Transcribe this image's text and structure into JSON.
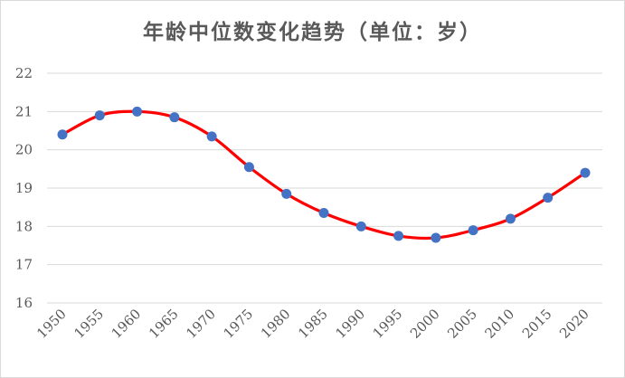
{
  "chart_data": {
    "type": "line",
    "title": "年龄中位数变化趋势（单位：岁）",
    "xlabel": "",
    "ylabel": "",
    "x": [
      1950,
      1955,
      1960,
      1965,
      1970,
      1975,
      1980,
      1985,
      1990,
      1995,
      2000,
      2005,
      2010,
      2015,
      2020
    ],
    "x_tick_labels": [
      "1950",
      "1955",
      "1960",
      "1965",
      "1970",
      "1975",
      "1980",
      "1985",
      "1990",
      "1995",
      "2000",
      "2005",
      "2010",
      "2015",
      "2020"
    ],
    "y_tick_labels": [
      "16",
      "17",
      "18",
      "19",
      "20",
      "21",
      "22"
    ],
    "ylim": [
      16,
      22
    ],
    "series": [
      {
        "values": [
          20.4,
          20.9,
          21.0,
          20.85,
          20.35,
          19.55,
          18.85,
          18.35,
          18.0,
          17.75,
          17.7,
          17.9,
          18.2,
          18.75,
          19.4
        ],
        "line_color": "#ff0000",
        "marker_color": "#4472c4",
        "smooth": true
      }
    ],
    "grid": true,
    "legend": "none"
  }
}
